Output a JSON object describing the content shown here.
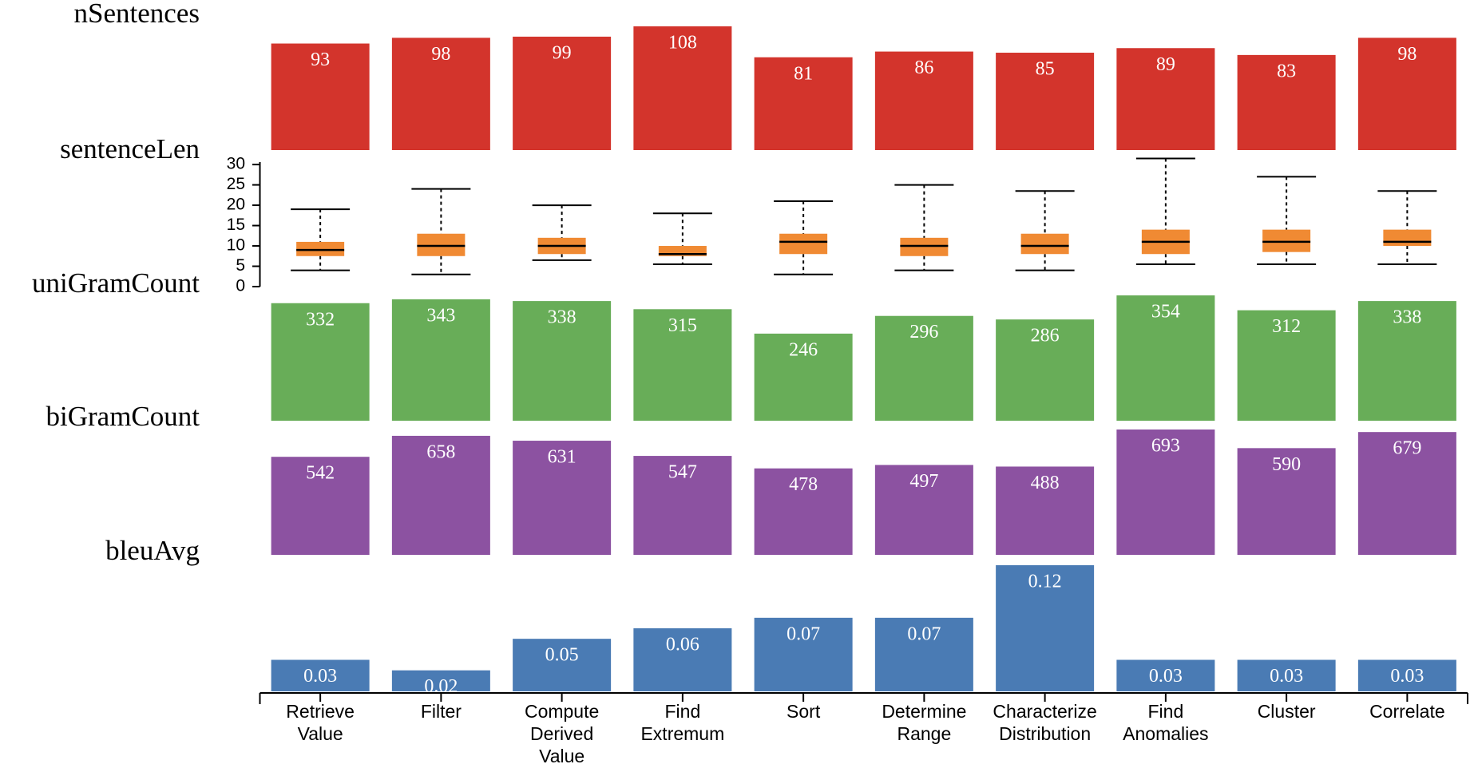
{
  "chart_data": {
    "type": "bar",
    "categories": [
      [
        "Retrieve",
        "Value"
      ],
      [
        "Filter"
      ],
      [
        "Compute",
        "Derived",
        "Value"
      ],
      [
        "Find",
        "Extremum"
      ],
      [
        "Sort"
      ],
      [
        "Determine",
        "Range"
      ],
      [
        "Characterize",
        "Distribution"
      ],
      [
        "Find",
        "Anomalies"
      ],
      [
        "Cluster"
      ],
      [
        "Correlate"
      ]
    ],
    "panels": [
      {
        "name": "nSentences",
        "type": "bar",
        "color": "#d3342c",
        "values": [
          93,
          98,
          99,
          108,
          81,
          86,
          85,
          89,
          83,
          98
        ],
        "labels": [
          "93",
          "98",
          "99",
          "108",
          "81",
          "86",
          "85",
          "89",
          "83",
          "98"
        ]
      },
      {
        "name": "sentenceLen",
        "type": "boxplot",
        "color": "#f08a33",
        "yticks": [
          0,
          5,
          10,
          15,
          20,
          25,
          30
        ],
        "ylim": [
          0,
          31
        ],
        "boxes": [
          {
            "min": 4,
            "q1": 7.5,
            "median": 9,
            "q3": 11,
            "max": 19
          },
          {
            "min": 3,
            "q1": 7.5,
            "median": 10,
            "q3": 13,
            "max": 24
          },
          {
            "min": 6.5,
            "q1": 8,
            "median": 10,
            "q3": 12,
            "max": 20
          },
          {
            "min": 5.5,
            "q1": 7.5,
            "median": 8,
            "q3": 10,
            "max": 18
          },
          {
            "min": 3,
            "q1": 8,
            "median": 11,
            "q3": 13,
            "max": 21
          },
          {
            "min": 4,
            "q1": 7.5,
            "median": 10,
            "q3": 12,
            "max": 25
          },
          {
            "min": 4,
            "q1": 8,
            "median": 10,
            "q3": 13,
            "max": 23.5
          },
          {
            "min": 5.5,
            "q1": 8,
            "median": 11,
            "q3": 14,
            "max": 31.5
          },
          {
            "min": 5.5,
            "q1": 8.5,
            "median": 11,
            "q3": 14,
            "max": 27
          },
          {
            "min": 5.5,
            "q1": 10,
            "median": 11,
            "q3": 14,
            "max": 23.5
          }
        ]
      },
      {
        "name": "uniGramCount",
        "type": "bar",
        "color": "#68ad58",
        "values": [
          332,
          343,
          338,
          315,
          246,
          296,
          286,
          354,
          312,
          338
        ],
        "labels": [
          "332",
          "343",
          "338",
          "315",
          "246",
          "296",
          "286",
          "354",
          "312",
          "338"
        ]
      },
      {
        "name": "biGramCount",
        "type": "bar",
        "color": "#8c52a1",
        "values": [
          542,
          658,
          631,
          547,
          478,
          497,
          488,
          693,
          590,
          679
        ],
        "labels": [
          "542",
          "658",
          "631",
          "547",
          "478",
          "497",
          "488",
          "693",
          "590",
          "679"
        ]
      },
      {
        "name": "bleuAvg",
        "type": "bar",
        "color": "#4a7bb4",
        "values": [
          0.03,
          0.02,
          0.05,
          0.06,
          0.07,
          0.07,
          0.12,
          0.03,
          0.03,
          0.03
        ],
        "labels": [
          "0.03",
          "0.02",
          "0.05",
          "0.06",
          "0.07",
          "0.07",
          "0.12",
          "0.03",
          "0.03",
          "0.03"
        ]
      }
    ]
  }
}
